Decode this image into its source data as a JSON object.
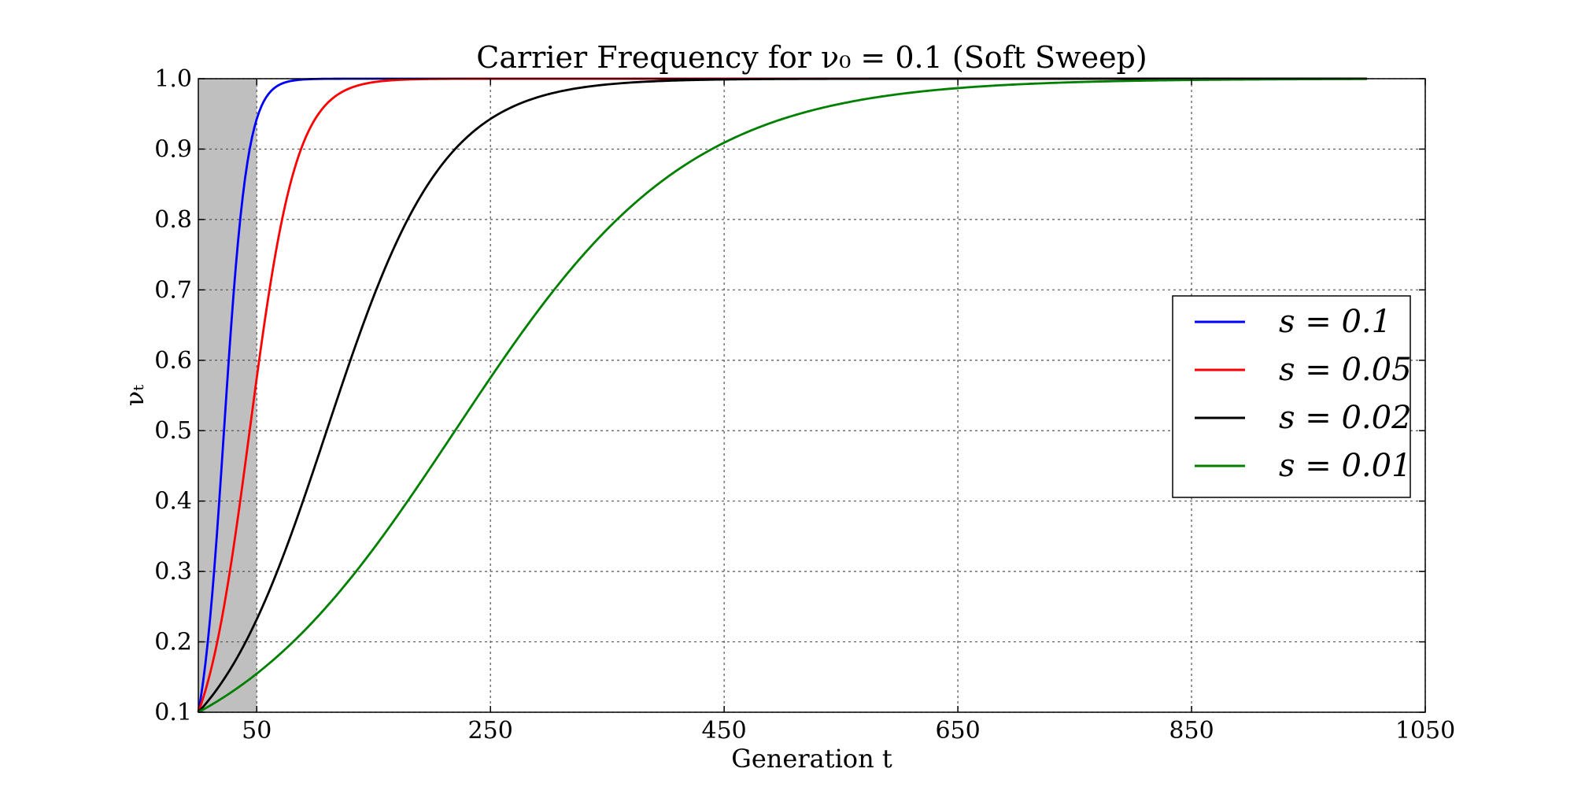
{
  "chart_data": {
    "type": "line",
    "title": "Carrier Frequency for ν₀ = 0.1 (Soft Sweep)",
    "xlabel": "Generation t",
    "ylabel": "νₜ",
    "xlim": [
      0,
      1050
    ],
    "ylim": [
      0.1,
      1.0
    ],
    "x_ticks": [
      "50",
      "250",
      "450",
      "650",
      "850",
      "1050"
    ],
    "y_ticks": [
      "0.1",
      "0.2",
      "0.3",
      "0.4",
      "0.5",
      "0.6",
      "0.7",
      "0.8",
      "0.9",
      "1.0"
    ],
    "grid": true,
    "legend_position": "center-right",
    "shaded_region": {
      "x": [
        0,
        50
      ],
      "color": "#bfbfbf"
    },
    "initial_frequency": 0.1,
    "x_max": 1000,
    "series": [
      {
        "name": "s = 0.1",
        "s": 0.1,
        "color": "#0000ff"
      },
      {
        "name": "s = 0.05",
        "s": 0.05,
        "color": "#ff0000"
      },
      {
        "name": "s = 0.02",
        "s": 0.02,
        "color": "#000000"
      },
      {
        "name": "s = 0.01",
        "s": 0.01,
        "color": "#008000"
      }
    ]
  }
}
